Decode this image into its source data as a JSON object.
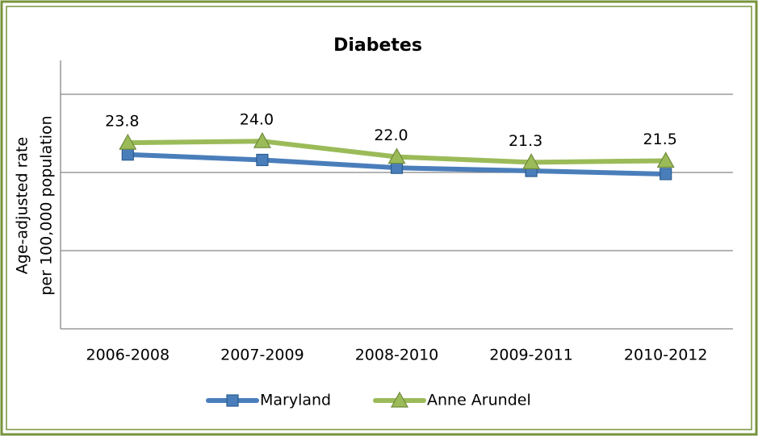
{
  "chart_data": {
    "type": "line",
    "title": "Diabetes",
    "y_label": [
      "Age-adjusted rate",
      "per 100,000 population"
    ],
    "categories": [
      "2006-2008",
      "2007-2009",
      "2008-2010",
      "2009-2011",
      "2010-2012"
    ],
    "series": [
      {
        "name": "Maryland",
        "color": "#4a7ebb",
        "marker": "square",
        "values": [
          22.3,
          21.6,
          20.6,
          20.2,
          19.8
        ]
      },
      {
        "name": "Anne Arundel",
        "color": "#9bbb59",
        "marker": "triangle",
        "values": [
          23.8,
          24,
          22,
          21.3,
          21.5
        ],
        "value_labels": [
          "23.8",
          "24.0",
          "22.0",
          "21.3",
          "21.5"
        ]
      }
    ],
    "ylim": [
      0,
      35
    ],
    "yticks": [
      0,
      10,
      20,
      30
    ],
    "grid": true,
    "legend": "bottom"
  }
}
